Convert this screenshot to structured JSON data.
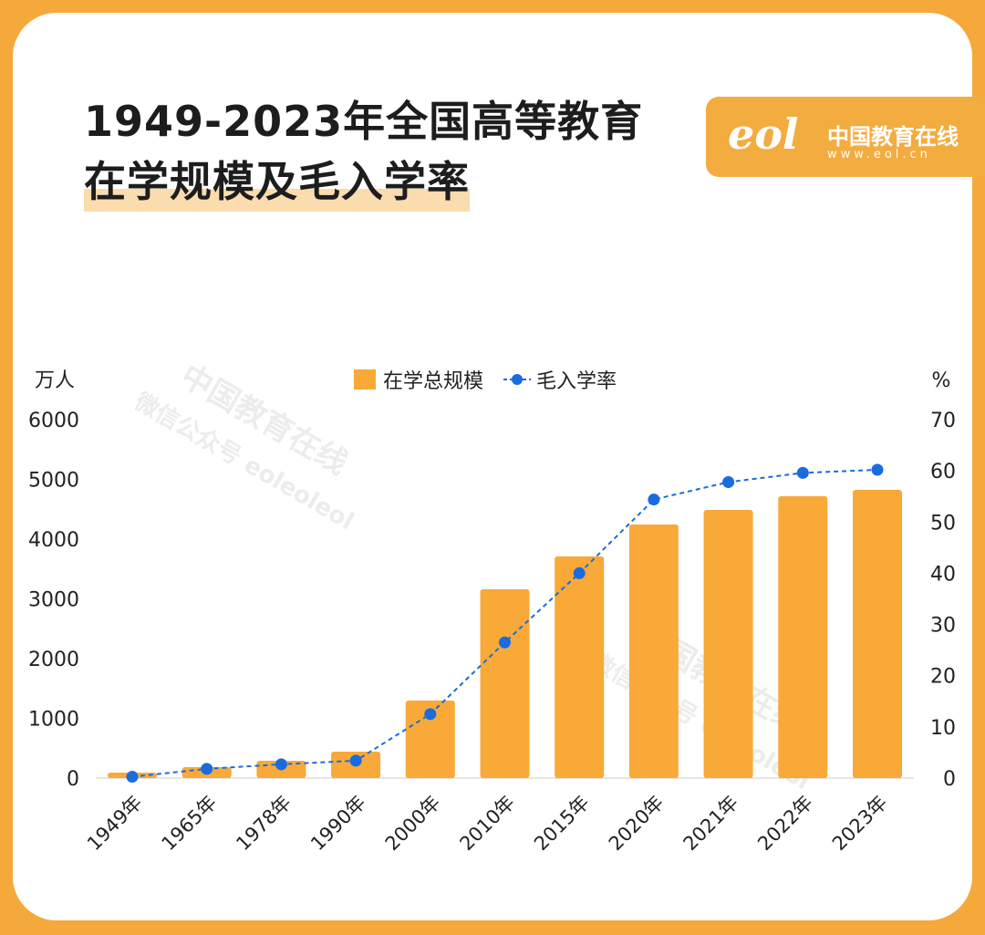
{
  "title_line1": "1949-2023年全国高等教育",
  "title_line2": "在学规模及毛入学率",
  "logo": {
    "mark": "eol",
    "name": "中国教育在线",
    "url": "www.eol.cn"
  },
  "watermark": {
    "line1": "中国教育在线",
    "line2": "微信公众号 eoleoleol"
  },
  "colors": {
    "bar": "#f8a938",
    "line": "#1a6be0",
    "border": "#f4a93a"
  },
  "chart_data": {
    "type": "bar+line",
    "categories": [
      "1949年",
      "1965年",
      "1978年",
      "1990年",
      "2000年",
      "2010年",
      "2015年",
      "2020年",
      "2021年",
      "2022年",
      "2023年"
    ],
    "series": [
      {
        "name": "在学总规模",
        "type": "bar",
        "axis": "left",
        "values": [
          92,
          183,
          290,
          443,
          1298,
          3160,
          3710,
          4244,
          4488,
          4718,
          4824
        ]
      },
      {
        "name": "毛入学率",
        "type": "line",
        "style": "dashed with markers",
        "axis": "right",
        "values": [
          0.26,
          1.8,
          2.7,
          3.4,
          12.5,
          26.5,
          40,
          54.4,
          57.8,
          59.6,
          60.2
        ]
      }
    ],
    "ylabel_left": "万人",
    "ylabel_right": "%",
    "ylim_left": [
      0,
      6000
    ],
    "ylim_right": [
      0,
      70
    ],
    "yticks_left": [
      "0",
      "1000",
      "2000",
      "3000",
      "4000",
      "5000",
      "6000"
    ],
    "yticks_right": [
      "0",
      "10",
      "20",
      "30",
      "40",
      "50",
      "60",
      "70"
    ],
    "legend_position": "top-center",
    "grid": false
  }
}
